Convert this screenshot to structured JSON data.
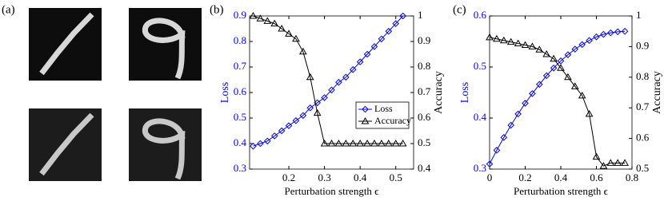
{
  "panel_labels": [
    "(a)",
    "(b)",
    "(c)"
  ],
  "chart_data": [
    {
      "type": "line",
      "xlabel": "Perturbation strength ϵ",
      "ylabel": "Loss",
      "y2label": "Accuracy",
      "xlim": [
        0.09,
        0.55
      ],
      "xticks": [
        0.2,
        0.3,
        0.4,
        0.5
      ],
      "ylim": [
        0.3,
        0.9
      ],
      "yticks": [
        0.3,
        0.4,
        0.5,
        0.6,
        0.7,
        0.8,
        0.9
      ],
      "y2lim": [
        0.4,
        1
      ],
      "y2ticks": [
        0.4,
        0.5,
        0.6,
        0.7,
        0.8,
        0.9,
        1
      ],
      "legend": "center right",
      "x": [
        0.1,
        0.12,
        0.14,
        0.16,
        0.18,
        0.2,
        0.22,
        0.24,
        0.26,
        0.28,
        0.3,
        0.32,
        0.34,
        0.36,
        0.38,
        0.4,
        0.42,
        0.44,
        0.46,
        0.48,
        0.5,
        0.52
      ],
      "series": [
        {
          "name": "Loss",
          "color": "#0000ff",
          "marker": "diamond",
          "values": [
            0.39,
            0.4,
            0.41,
            0.43,
            0.45,
            0.47,
            0.49,
            0.51,
            0.54,
            0.56,
            0.58,
            0.61,
            0.64,
            0.66,
            0.69,
            0.72,
            0.75,
            0.78,
            0.81,
            0.84,
            0.87,
            0.9
          ]
        },
        {
          "name": "Accuracy",
          "color": "#000000",
          "marker": "triangle",
          "axis": "y2",
          "values": [
            1.0,
            0.99,
            0.98,
            0.97,
            0.95,
            0.93,
            0.91,
            0.86,
            0.76,
            0.62,
            0.5,
            0.5,
            0.5,
            0.5,
            0.5,
            0.5,
            0.5,
            0.5,
            0.5,
            0.5,
            0.5,
            0.5
          ]
        }
      ]
    },
    {
      "type": "line",
      "xlabel": "Perturbation strength ϵ",
      "ylabel": "Loss",
      "y2label": "Accuracy",
      "xlim": [
        0,
        0.8
      ],
      "xticks": [
        0,
        0.2,
        0.4,
        0.6,
        0.8
      ],
      "ylim": [
        0.3,
        0.6
      ],
      "yticks": [
        0.3,
        0.4,
        0.5,
        0.6
      ],
      "y2lim": [
        0.5,
        1
      ],
      "y2ticks": [
        0.5,
        0.6,
        0.7,
        0.8,
        0.9,
        1
      ],
      "x": [
        0,
        0.04,
        0.08,
        0.12,
        0.16,
        0.2,
        0.24,
        0.28,
        0.32,
        0.36,
        0.4,
        0.44,
        0.48,
        0.52,
        0.56,
        0.6,
        0.64,
        0.68,
        0.72,
        0.76
      ],
      "series": [
        {
          "color": "#0000ff",
          "marker": "diamond",
          "values": [
            0.31,
            0.337,
            0.362,
            0.386,
            0.408,
            0.429,
            0.448,
            0.466,
            0.483,
            0.498,
            0.512,
            0.524,
            0.535,
            0.544,
            0.552,
            0.559,
            0.564,
            0.567,
            0.569,
            0.57
          ]
        },
        {
          "color": "#000000",
          "marker": "triangle",
          "axis": "y2",
          "values": [
            0.93,
            0.925,
            0.92,
            0.915,
            0.91,
            0.905,
            0.9,
            0.89,
            0.875,
            0.86,
            0.83,
            0.8,
            0.77,
            0.74,
            0.68,
            0.54,
            0.51,
            0.52,
            0.52,
            0.52
          ]
        }
      ]
    }
  ]
}
